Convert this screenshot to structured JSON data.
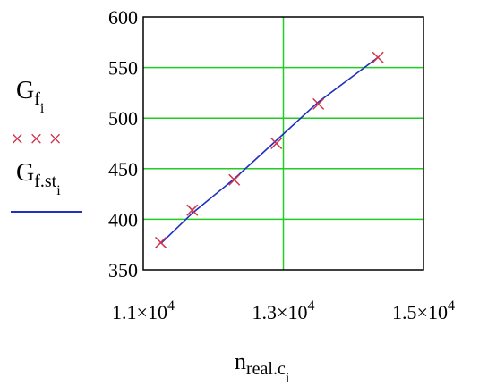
{
  "chart_data": {
    "type": "scatter",
    "xlim": [
      11000,
      15000
    ],
    "ylim": [
      350,
      600
    ],
    "x_ticks": [
      11000,
      13000,
      15000
    ],
    "x_tick_labels": [
      {
        "mantissa": "1.1×10",
        "exp": "4"
      },
      {
        "mantissa": "1.3×10",
        "exp": "4"
      },
      {
        "mantissa": "1.5×10",
        "exp": "4"
      }
    ],
    "y_ticks": [
      350,
      400,
      450,
      500,
      550,
      600
    ],
    "y_tick_labels": [
      "350",
      "400",
      "450",
      "500",
      "550",
      "600"
    ],
    "grid": true,
    "xlabel": {
      "main": "n",
      "sub": "real.c",
      "subsub": "i"
    },
    "legend_placement": "left",
    "series": [
      {
        "name": {
          "main": "G",
          "sub": "f",
          "subsub": "i"
        },
        "marker_glyph": "× × ×",
        "style": "markers",
        "color": "#d0304a",
        "x": [
          11250,
          11700,
          12300,
          12900,
          13500,
          14350
        ],
        "y": [
          377,
          409,
          439,
          475,
          514,
          560
        ]
      },
      {
        "name": {
          "main": "G",
          "sub": "f.st",
          "subsub": "i"
        },
        "style": "line",
        "color": "#1f2fbf",
        "x": [
          11250,
          11700,
          12300,
          12900,
          13500,
          14350
        ],
        "y": [
          376,
          406,
          440,
          478,
          516,
          560
        ]
      }
    ],
    "colors": {
      "grid": "#22cc22",
      "frame": "#000000"
    }
  }
}
